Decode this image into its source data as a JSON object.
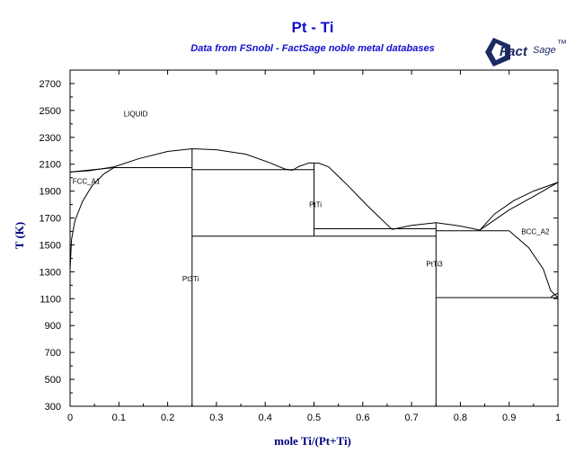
{
  "header": {
    "title": "Pt - Ti",
    "subtitle": "Data from FSnobl - FactSage noble metal databases"
  },
  "logo": {
    "text_fact": "Fact",
    "text_sage": "Sage",
    "mark": "™"
  },
  "chart_data": {
    "type": "line",
    "xlabel": "mole Ti/(Pt+Ti)",
    "ylabel": "T (K)",
    "xlim": [
      0,
      1
    ],
    "ylim": [
      300,
      2800
    ],
    "x_ticks": [
      0,
      0.1,
      0.2,
      0.3,
      0.4,
      0.5,
      0.6,
      0.7,
      0.8,
      0.9,
      1
    ],
    "x_tick_labels": [
      "0",
      "0.1",
      "0.2",
      "0.3",
      "0.4",
      "0.5",
      "0.6",
      "0.7",
      "0.8",
      "0.9",
      "1"
    ],
    "y_ticks": [
      300,
      500,
      700,
      900,
      1100,
      1300,
      1500,
      1700,
      1900,
      2100,
      2300,
      2500,
      2700
    ],
    "y_tick_labels": [
      "300",
      "500",
      "700",
      "900",
      "1100",
      "1300",
      "1500",
      "1700",
      "1900",
      "2100",
      "2300",
      "2500",
      "2700"
    ],
    "grid": false,
    "region_labels": [
      {
        "text": "LIQUID",
        "x": 0.11,
        "y": 2455
      },
      {
        "text": "FCC_A1",
        "x": 0.005,
        "y": 1955
      },
      {
        "text": "PtTi",
        "x": 0.49,
        "y": 1780
      },
      {
        "text": "Pt3Ti",
        "x": 0.23,
        "y": 1230
      },
      {
        "text": "PtTi3",
        "x": 0.73,
        "y": 1340
      },
      {
        "text": "BCC_A2",
        "x": 0.925,
        "y": 1580
      }
    ],
    "series": [
      {
        "values": [
          [
            0,
            2042
          ],
          [
            0.04,
            2052
          ],
          [
            0.09,
            2080
          ],
          [
            0.14,
            2140
          ],
          [
            0.2,
            2195
          ],
          [
            0.25,
            2215
          ],
          [
            0.3,
            2208
          ],
          [
            0.36,
            2175
          ],
          [
            0.41,
            2110
          ],
          [
            0.44,
            2065
          ],
          [
            0.455,
            2055
          ],
          [
            0.47,
            2085
          ],
          [
            0.49,
            2110
          ],
          [
            0.51,
            2108
          ],
          [
            0.53,
            2080
          ],
          [
            0.57,
            1940
          ],
          [
            0.61,
            1790
          ],
          [
            0.66,
            1615
          ]
        ]
      },
      {
        "values": [
          [
            0,
            1315
          ],
          [
            0.003,
            1540
          ],
          [
            0.01,
            1680
          ],
          [
            0.025,
            1820
          ],
          [
            0.045,
            1940
          ],
          [
            0.07,
            2030
          ],
          [
            0.09,
            2075
          ]
        ]
      },
      {
        "values": [
          [
            0,
            2042
          ],
          [
            0.09,
            2075
          ]
        ]
      },
      {
        "values": [
          [
            0.09,
            2075
          ],
          [
            0.25,
            2075
          ]
        ]
      },
      {
        "values": [
          [
            0.25,
            2060
          ],
          [
            0.5,
            2060
          ]
        ]
      },
      {
        "values": [
          [
            0.25,
            300
          ],
          [
            0.25,
            2215
          ]
        ]
      },
      {
        "values": [
          [
            0.25,
            1565
          ],
          [
            0.75,
            1565
          ]
        ]
      },
      {
        "values": [
          [
            0.5,
            1565
          ],
          [
            0.5,
            2110
          ]
        ]
      },
      {
        "values": [
          [
            0.5,
            1620
          ],
          [
            0.75,
            1620
          ]
        ]
      },
      {
        "values": [
          [
            0.66,
            1615
          ],
          [
            0.7,
            1645
          ],
          [
            0.75,
            1665
          ],
          [
            0.8,
            1640
          ],
          [
            0.84,
            1610
          ]
        ]
      },
      {
        "values": [
          [
            0.75,
            300
          ],
          [
            0.75,
            1665
          ]
        ]
      },
      {
        "values": [
          [
            0.75,
            1605
          ],
          [
            0.9,
            1605
          ]
        ]
      },
      {
        "values": [
          [
            0.75,
            1108
          ],
          [
            1,
            1108
          ]
        ]
      },
      {
        "values": [
          [
            0.84,
            1610
          ],
          [
            0.87,
            1730
          ],
          [
            0.91,
            1830
          ],
          [
            0.95,
            1900
          ],
          [
            1,
            1965
          ]
        ]
      },
      {
        "values": [
          [
            0.84,
            1610
          ],
          [
            0.87,
            1685
          ],
          [
            0.9,
            1760
          ],
          [
            0.95,
            1860
          ],
          [
            1,
            1965
          ]
        ]
      },
      {
        "values": [
          [
            0.9,
            1605
          ],
          [
            0.94,
            1480
          ],
          [
            0.97,
            1320
          ],
          [
            0.985,
            1160
          ],
          [
            1,
            1108
          ]
        ]
      },
      {
        "values": [
          [
            0.985,
            1108
          ],
          [
            0.99,
            1125
          ],
          [
            1,
            1140
          ]
        ]
      }
    ]
  }
}
